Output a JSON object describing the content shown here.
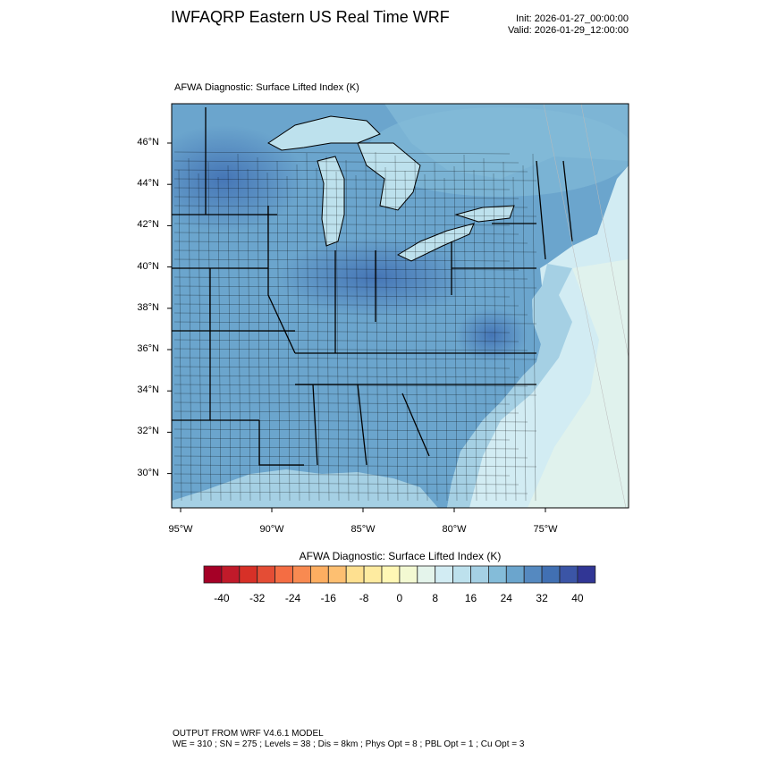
{
  "header": {
    "title": "IWFAQRP Eastern US Real Time WRF",
    "init": "Init: 2026-01-27_00:00:00",
    "valid": "Valid: 2026-01-29_12:00:00"
  },
  "plot": {
    "subtitle": "AFWA Diagnostic: Surface Lifted Index   (K)",
    "lat_labels": [
      "46°N",
      "44°N",
      "42°N",
      "40°N",
      "38°N",
      "36°N",
      "34°N",
      "32°N",
      "30°N"
    ],
    "lat_values": [
      46,
      44,
      42,
      40,
      38,
      36,
      34,
      32,
      30
    ],
    "lon_labels": [
      "95°W",
      "90°W",
      "85°W",
      "80°W",
      "75°W"
    ],
    "lon_values": [
      -95,
      -90,
      -85,
      -80,
      -75
    ]
  },
  "colorbar": {
    "title": "AFWA Diagnostic: Surface Lifted Index  (K)",
    "levels_min": -40,
    "levels_max": 40,
    "level_step": 4,
    "labels": [
      "-40",
      "-32",
      "-24",
      "-16",
      "-8",
      "0",
      "8",
      "16",
      "24",
      "32",
      "40"
    ],
    "colors": [
      "#a50026",
      "#c11a2a",
      "#d73027",
      "#e44d35",
      "#f46d43",
      "#f88a51",
      "#fdae61",
      "#fdbf71",
      "#fee090",
      "#feeba0",
      "#fff7b5",
      "#f3f9d2",
      "#e4f4eb",
      "#d2ecf3",
      "#bde1ed",
      "#a5d0e4",
      "#84bcd9",
      "#6ba5cd",
      "#5589c0",
      "#4170b3",
      "#3b55a6",
      "#313695"
    ]
  },
  "footer": {
    "line1": "OUTPUT FROM WRF V4.6.1 MODEL",
    "line2": "WE = 310 ; SN = 275 ; Levels = 38 ; Dis = 8km ; Phys Opt = 8 ; PBL Opt = 1 ; Cu Opt = 3"
  }
}
